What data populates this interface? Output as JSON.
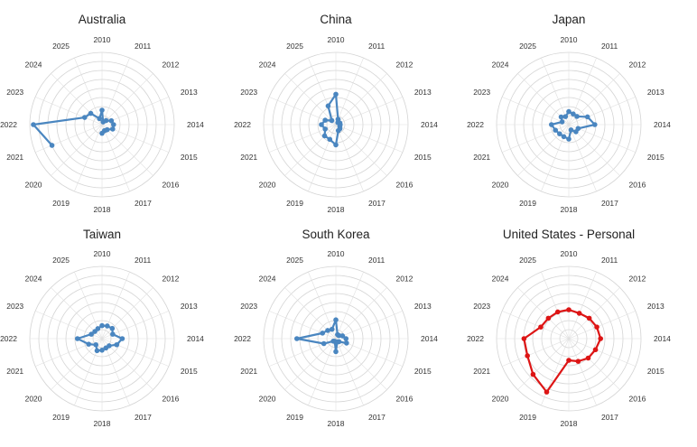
{
  "chart_data": [
    {
      "type": "radar",
      "title": "Australia",
      "categories": [
        "2010",
        "2011",
        "2012",
        "2013",
        "2014",
        "2015",
        "2016",
        "2017",
        "2018",
        "2019",
        "2020",
        "2021",
        "2022",
        "2023",
        "2024",
        "2025"
      ],
      "values": [
        0.2,
        0.04,
        0.08,
        0.14,
        0.16,
        0.16,
        0.1,
        0.09,
        0.12,
        null,
        null,
        0.75,
        0.95,
        0.26,
        0.22,
        0.09
      ],
      "color": "#4a86c0",
      "grid": true,
      "rlim": [
        0,
        1
      ]
    },
    {
      "type": "radar",
      "title": "China",
      "categories": [
        "2010",
        "2011",
        "2012",
        "2013",
        "2014",
        "2015",
        "2016",
        "2017",
        "2018",
        "2019",
        "2020",
        "2021",
        "2022",
        "2023",
        "2024",
        "2025"
      ],
      "values": [
        0.42,
        0.08,
        0.04,
        0.06,
        0.06,
        0.06,
        0.08,
        0.09,
        0.28,
        0.22,
        0.22,
        0.16,
        0.2,
        0.16,
        0.08,
        0.28
      ],
      "color": "#4a86c0",
      "grid": true,
      "rlim": [
        0,
        1
      ]
    },
    {
      "type": "radar",
      "title": "Japan",
      "categories": [
        "2010",
        "2011",
        "2012",
        "2013",
        "2014",
        "2015",
        "2016",
        "2017",
        "2018",
        "2019",
        "2020",
        "2021",
        "2022",
        "2023",
        "2024",
        "2025"
      ],
      "values": [
        0.18,
        0.16,
        0.16,
        0.28,
        0.36,
        0.14,
        0.14,
        0.08,
        0.2,
        0.18,
        0.18,
        0.2,
        0.24,
        0.1,
        0.15,
        0.12
      ],
      "color": "#4a86c0",
      "grid": true,
      "rlim": [
        0,
        1
      ]
    },
    {
      "type": "radar",
      "title": "Taiwan",
      "categories": [
        "2010",
        "2011",
        "2012",
        "2013",
        "2014",
        "2015",
        "2016",
        "2017",
        "2018",
        "2019",
        "2020",
        "2021",
        "2022",
        "2023",
        "2024",
        "2025"
      ],
      "values": [
        0.18,
        0.19,
        0.2,
        0.16,
        0.28,
        0.22,
        0.14,
        0.14,
        0.16,
        0.18,
        0.12,
        0.2,
        0.34,
        0.16,
        0.14,
        0.15
      ],
      "color": "#4a86c0",
      "grid": true,
      "rlim": [
        0,
        1
      ]
    },
    {
      "type": "radar",
      "title": "South Korea",
      "categories": [
        "2010",
        "2011",
        "2012",
        "2013",
        "2014",
        "2015",
        "2016",
        "2017",
        "2018",
        "2019",
        "2020",
        "2021",
        "2022",
        "2023",
        "2024",
        "2025"
      ],
      "values": [
        0.26,
        0.06,
        0.06,
        0.1,
        0.14,
        0.16,
        0.06,
        0.05,
        0.18,
        0.04,
        0.05,
        0.18,
        0.54,
        0.2,
        0.16,
        0.14
      ],
      "color": "#4a86c0",
      "grid": true,
      "rlim": [
        0,
        1
      ]
    },
    {
      "type": "radar",
      "title": "United States - Personal",
      "categories": [
        "2010",
        "2011",
        "2012",
        "2013",
        "2014",
        "2015",
        "2016",
        "2017",
        "2018",
        "2019",
        "2020",
        "2021",
        "2022",
        "2023",
        "2024",
        "2025"
      ],
      "values": [
        0.4,
        0.38,
        0.4,
        0.42,
        0.44,
        0.4,
        0.38,
        0.34,
        0.3,
        0.8,
        0.7,
        0.62,
        0.62,
        0.42,
        0.4,
        0.4
      ],
      "color": "#dd1515",
      "grid": true,
      "rlim": [
        0,
        1
      ]
    }
  ]
}
